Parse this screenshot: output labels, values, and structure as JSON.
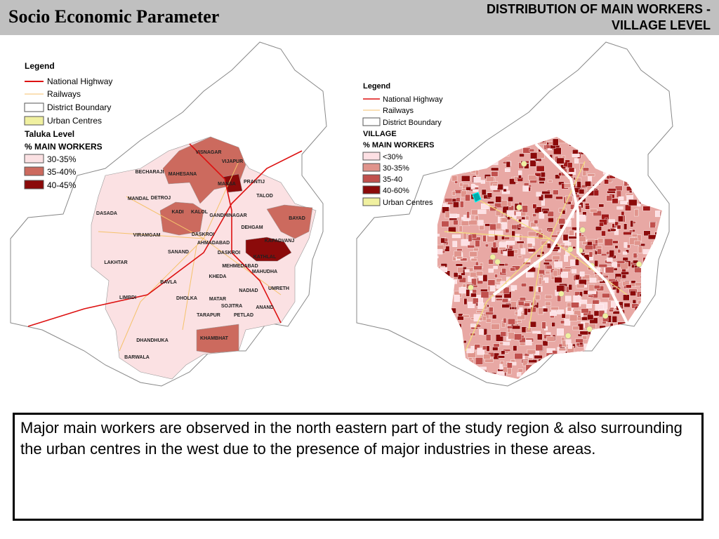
{
  "header": {
    "title": "Socio Economic Parameter",
    "subtitle_lines": [
      "DISTRIBUTION OF MAIN WORKERS -",
      "VILLAGE LEVEL"
    ]
  },
  "left_map": {
    "legend": {
      "title": "Legend",
      "items": [
        "National Highway",
        "Railways",
        "District Boundary",
        "Urban Centres"
      ],
      "level": "Taluka Level",
      "measure": "% MAIN WORKERS",
      "classes": [
        "30-35%",
        "35-40%",
        "40-45%"
      ]
    },
    "labels": [
      "VISNAGAR",
      "VIJAPUR",
      "BECHARAJI",
      "MAHESANA",
      "MANSA",
      "PRANTIJ",
      "TALOD",
      "MANDAL",
      "DETROJ",
      "KADI",
      "KALOL",
      "GANDHINAGAR",
      "BAYAD",
      "DASADA",
      "DEHGAM",
      "VIRAMGAM",
      "DASKROI",
      "KAPADVANJ",
      "AHMADABAD",
      "SANAND",
      "DASKROI",
      "KATHLAL",
      "LAKHTAR",
      "MEHMEDABAD",
      "MAHUDHA",
      "KHEDA",
      "BAVLA",
      "NADIAD",
      "UMRETH",
      "LIMBDI",
      "DHOLKA",
      "MATAR",
      "SOJITRA",
      "ANAND",
      "PETLAD",
      "TARAPUR",
      "KHAMBHAT",
      "DHANDHUKA",
      "BARWALA"
    ]
  },
  "right_map": {
    "legend": {
      "title": "Legend",
      "items": [
        "National Highway",
        "Railways",
        "District Boundary"
      ],
      "level": "VILLAGE",
      "measure": "% MAIN WORKERS",
      "classes": [
        "<30%",
        "30-35%",
        "35-40",
        "40-60%",
        "Urban Centres"
      ]
    }
  },
  "note": "Major main workers are observed in the north eastern part of the study region & also surrounding the urban centres in the west due to the presence of major industries in these areas."
}
